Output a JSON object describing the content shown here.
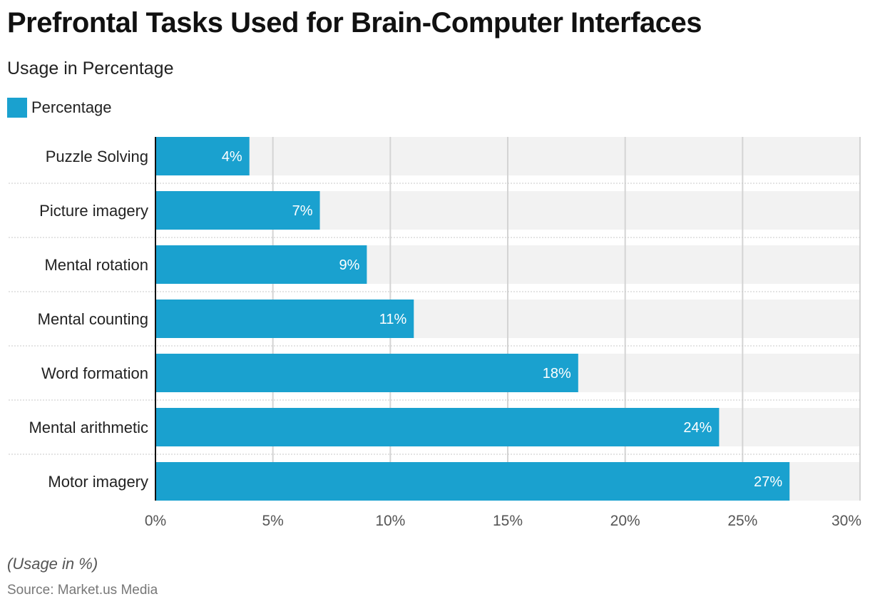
{
  "header": {
    "title": "Prefrontal Tasks Used for Brain-Computer Interfaces",
    "subtitle": "Usage in Percentage"
  },
  "legend": {
    "label": "Percentage"
  },
  "footer": {
    "note": "(Usage in %)",
    "source": "Source: Market.us Media"
  },
  "colors": {
    "bar": "#1aa1cf",
    "track": "#f2f2f2",
    "grid": "#d4d4d4",
    "axis": "#111111",
    "label": "#222222",
    "tick": "#555555",
    "value_label": "#ffffff"
  },
  "chart_data": {
    "type": "bar",
    "orientation": "horizontal",
    "categories": [
      "Puzzle Solving",
      "Picture imagery",
      "Mental rotation",
      "Mental counting",
      "Word formation",
      "Mental arithmetic",
      "Motor imagery"
    ],
    "series": [
      {
        "name": "Percentage",
        "values": [
          4,
          7,
          9,
          11,
          18,
          24,
          27
        ]
      }
    ],
    "value_labels": [
      "4%",
      "7%",
      "9%",
      "11%",
      "18%",
      "24%",
      "27%"
    ],
    "xlim": [
      0,
      30
    ],
    "x_ticks": [
      0,
      5,
      10,
      15,
      20,
      25,
      30
    ],
    "x_tick_labels": [
      "0%",
      "5%",
      "10%",
      "15%",
      "20%",
      "25%",
      "30%"
    ],
    "grid": true,
    "legend_position": "top-left"
  }
}
